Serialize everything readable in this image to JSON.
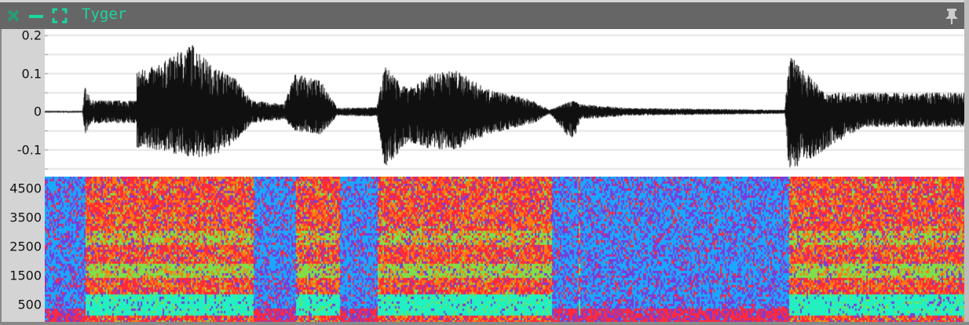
{
  "window": {
    "title": "Tyger",
    "icons": [
      "close-icon",
      "minimize-icon",
      "maximize-icon",
      "pin-icon"
    ],
    "accent": "#1ad6a0",
    "titlebar_color": "#666666"
  },
  "chart_data": [
    {
      "type": "line",
      "kind": "waveform",
      "ylim": [
        -0.17,
        0.217
      ],
      "yticks": [
        "0.2",
        "0.1",
        "0",
        "-0.1"
      ],
      "ytick_values": [
        0.2,
        0.1,
        0,
        -0.1
      ],
      "grid": true,
      "envelope_columns": [
        "time_fraction",
        "max",
        "min"
      ],
      "envelope": [
        [
          0,
          0.002,
          -0.002
        ],
        [
          0.041,
          0.002,
          -0.002
        ],
        [
          0.044,
          0.07,
          -0.06
        ],
        [
          0.05,
          0.03,
          -0.03
        ],
        [
          0.1,
          0.03,
          -0.03
        ],
        [
          0.1,
          0.11,
          -0.1
        ],
        [
          0.122,
          0.12,
          -0.1
        ],
        [
          0.16,
          0.18,
          -0.12
        ],
        [
          0.182,
          0.12,
          -0.12
        ],
        [
          0.207,
          0.09,
          -0.08
        ],
        [
          0.225,
          0.03,
          -0.03
        ],
        [
          0.26,
          0.02,
          -0.02
        ],
        [
          0.272,
          0.1,
          -0.05
        ],
        [
          0.302,
          0.08,
          -0.06
        ],
        [
          0.318,
          0.01,
          -0.01
        ],
        [
          0.361,
          0.012,
          -0.012
        ],
        [
          0.37,
          0.12,
          -0.15
        ],
        [
          0.395,
          0.06,
          -0.08
        ],
        [
          0.421,
          0.1,
          -0.1
        ],
        [
          0.447,
          0.11,
          -0.1
        ],
        [
          0.481,
          0.06,
          -0.06
        ],
        [
          0.532,
          0.03,
          -0.03
        ],
        [
          0.549,
          0.005,
          -0.005
        ],
        [
          0.574,
          0.03,
          -0.08
        ],
        [
          0.583,
          0.02,
          -0.02
        ],
        [
          0.634,
          0.01,
          -0.01
        ],
        [
          0.805,
          0.005,
          -0.005
        ],
        [
          0.809,
          0.15,
          -0.15
        ],
        [
          0.822,
          0.12,
          -0.14
        ],
        [
          0.848,
          0.05,
          -0.1
        ],
        [
          0.89,
          0.05,
          -0.04
        ],
        [
          1,
          0.05,
          -0.04
        ]
      ]
    },
    {
      "type": "heatmap",
      "kind": "spectrogram",
      "ylim": [
        0,
        5000
      ],
      "yticks": [
        "4500",
        "3500",
        "2500",
        "1500",
        "500"
      ],
      "ytick_values": [
        4500,
        3500,
        2500,
        1500,
        500
      ],
      "voiced_segments": [
        [
          0.044,
          0.225
        ],
        [
          0.272,
          0.318
        ],
        [
          0.362,
          0.549
        ],
        [
          0.58,
          0.58
        ],
        [
          0.809,
          1
        ]
      ],
      "colormap": [
        "#1aa8ff",
        "#7a3cd8",
        "#ff2a3c",
        "#ff7a10",
        "#7de04a",
        "#22f0c0"
      ]
    }
  ]
}
